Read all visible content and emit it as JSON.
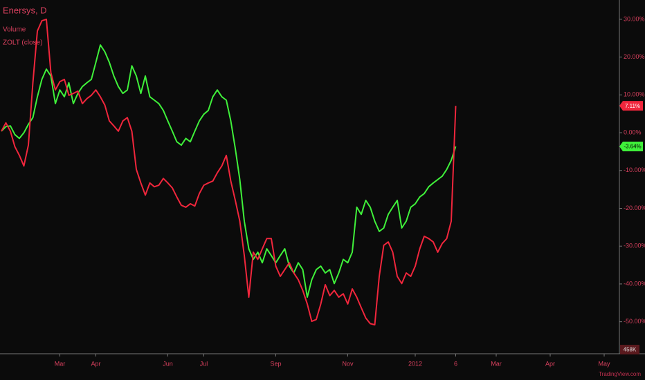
{
  "chart_data": {
    "type": "line",
    "title": "Enersys, D",
    "subtitle": "Volume",
    "watermark": "TradingView.com",
    "volume_label": "458K",
    "categories": [
      null,
      null,
      null,
      null,
      null,
      null,
      null,
      null,
      null,
      null,
      null,
      null,
      null,
      "Mar",
      null,
      null,
      null,
      null,
      null,
      null,
      null,
      "Apr",
      null,
      null,
      null,
      null,
      null,
      null,
      null,
      null,
      null,
      null,
      null,
      null,
      null,
      null,
      null,
      "Jun",
      null,
      null,
      null,
      null,
      null,
      null,
      null,
      "Jul",
      null,
      null,
      null,
      null,
      null,
      null,
      null,
      null,
      null,
      null,
      null,
      null,
      null,
      null,
      null,
      "Sep",
      null,
      null,
      null,
      null,
      null,
      null,
      null,
      null,
      null,
      null,
      null,
      null,
      null,
      null,
      null,
      "Nov",
      null,
      null,
      null,
      null,
      null,
      null,
      null,
      null,
      null,
      null,
      null,
      null,
      null,
      null,
      "2012",
      null,
      null,
      null,
      null,
      null,
      null,
      null,
      null,
      "6",
      null,
      null,
      null,
      null,
      null,
      null,
      null,
      null,
      "Mar",
      null,
      null,
      null,
      null,
      null,
      null,
      null,
      null,
      null,
      null,
      null,
      "Apr",
      null,
      null,
      null,
      null,
      null,
      null,
      null,
      null,
      null,
      null,
      null,
      "May",
      null,
      null,
      null
    ],
    "series": [
      {
        "color": "#f0263c",
        "end_label": "7.11%",
        "values": [
          0.4,
          2.6,
          0.4,
          -3.7,
          -6,
          -8.8,
          -3.3,
          13.2,
          26.9,
          29.6,
          30,
          15.9,
          11.3,
          13.5,
          14.1,
          9.9,
          10.4,
          11,
          7.7,
          9,
          9.9,
          11.3,
          9.5,
          7.3,
          3.1,
          1.8,
          0.4,
          3.1,
          4,
          0.4,
          -9.7,
          -13.3,
          -16.5,
          -13.3,
          -14.3,
          -13.9,
          -12.1,
          -13.3,
          -14.6,
          -17,
          -19.2,
          -19.7,
          -18.8,
          -19.4,
          -16.1,
          -13.9,
          -13.3,
          -12.8,
          -10.6,
          -8.8,
          -6,
          -12.8,
          -17.9,
          -23.4,
          -32.5,
          -43.5,
          -31.6,
          -33.5,
          -30.7,
          -28,
          -28,
          -35.3,
          -38,
          -36.2,
          -34.4,
          -37.1,
          -38.9,
          -41.7,
          -45.3,
          -49.9,
          -49.4,
          -45.3,
          -40.2,
          -43.1,
          -41.7,
          -43.5,
          -42.6,
          -45.3,
          -41.3,
          -43.5,
          -46.3,
          -49,
          -50.5,
          -50.8,
          -38,
          -29.8,
          -28.9,
          -31.6,
          -38,
          -39.9,
          -37.1,
          -38,
          -35.3,
          -30.7,
          -27.4,
          -28,
          -28.9,
          -31.6,
          -29.3,
          -28,
          -23.4,
          7.11,
          null,
          null,
          null,
          null,
          null,
          null,
          null,
          null,
          null,
          null,
          null,
          null,
          null,
          null,
          null,
          null,
          null,
          null,
          null,
          null,
          null,
          null,
          null,
          null,
          null,
          null,
          null,
          null,
          null,
          null,
          null,
          null,
          null,
          null,
          null,
          null
        ]
      },
      {
        "name": "ZOLT (close)",
        "color": "#3ff03a",
        "end_label": "-3.64%",
        "values": [
          0.4,
          1.6,
          1.8,
          -0.5,
          -1.5,
          0,
          2.2,
          4,
          9.5,
          14.1,
          16.8,
          15,
          7.7,
          11.3,
          9.5,
          13.2,
          7.7,
          10.4,
          12.2,
          13.2,
          14.1,
          18.6,
          23.2,
          21.4,
          18.6,
          15,
          12.2,
          10.4,
          11.3,
          17.7,
          15,
          10.4,
          15,
          9.5,
          8.6,
          7.7,
          5.9,
          3.1,
          0.4,
          -2.4,
          -3.3,
          -1.5,
          -2.4,
          0.4,
          3.1,
          4.9,
          5.9,
          9.5,
          11.3,
          9.5,
          8.6,
          3.1,
          -4.2,
          -12.4,
          -23.4,
          -30.7,
          -33.5,
          -31.6,
          -34.4,
          -30.7,
          -32.5,
          -34.4,
          -32.5,
          -30.7,
          -35.3,
          -37.1,
          -34.4,
          -36.2,
          -43.5,
          -38.9,
          -36.2,
          -35.3,
          -37.1,
          -36.2,
          -39.9,
          -37.1,
          -33.5,
          -34.4,
          -31.6,
          -19.7,
          -21.6,
          -17.9,
          -19.7,
          -23.4,
          -26.1,
          -25.2,
          -21.6,
          -19.7,
          -17.9,
          -25.2,
          -23.4,
          -19.7,
          -18.8,
          -17,
          -16.1,
          -14.3,
          -13.3,
          -12.4,
          -11.5,
          -9.7,
          -7.3,
          -3.64,
          null,
          null,
          null,
          null,
          null,
          null,
          null,
          null,
          null,
          null,
          null,
          null,
          null,
          null,
          null,
          null,
          null,
          null,
          null,
          null,
          null,
          null,
          null,
          null,
          null,
          null,
          null,
          null,
          null,
          null,
          null,
          null,
          null,
          null,
          null,
          null
        ]
      }
    ],
    "ylim": [
      -58.1,
      35.1
    ],
    "yticks": [
      {
        "value": 30,
        "label": "30.00%"
      },
      {
        "value": 20,
        "label": "20.00%"
      },
      {
        "value": 10,
        "label": "10.00%"
      },
      {
        "value": 0,
        "label": "0.00%"
      },
      {
        "value": -10,
        "label": "-10.00%"
      },
      {
        "value": -20,
        "label": "-20.00%"
      },
      {
        "value": -30,
        "label": "-30.00%"
      },
      {
        "value": -40,
        "label": "-40.00%"
      },
      {
        "value": -50,
        "label": "-50.00%"
      }
    ],
    "grid": false
  }
}
